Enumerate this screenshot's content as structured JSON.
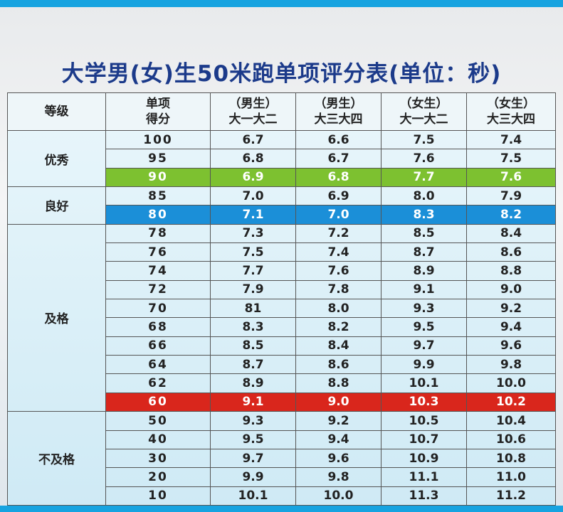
{
  "title": "大学男(女)生50米跑单项评分表(单位：秒)",
  "header": [
    [
      "等级"
    ],
    [
      "单项",
      "得分"
    ],
    [
      "（男生）",
      "大一大二"
    ],
    [
      "（男生）",
      "大三大四"
    ],
    [
      "（女生）",
      "大一大二"
    ],
    [
      "（女生）",
      "大三大四"
    ]
  ],
  "groups": [
    {
      "grade": "优秀",
      "rows": [
        {
          "cells": [
            "100",
            "6.7",
            "6.6",
            "7.5",
            "7.4"
          ]
        },
        {
          "cells": [
            "95",
            "6.8",
            "6.7",
            "7.6",
            "7.5"
          ]
        },
        {
          "cells": [
            "90",
            "6.9",
            "6.8",
            "7.7",
            "7.6"
          ],
          "highlight": "#7dc130"
        }
      ]
    },
    {
      "grade": "良好",
      "rows": [
        {
          "cells": [
            "85",
            "7.0",
            "6.9",
            "8.0",
            "7.9"
          ]
        },
        {
          "cells": [
            "80",
            "7.1",
            "7.0",
            "8.3",
            "8.2"
          ],
          "highlight": "#1b8fd8"
        }
      ]
    },
    {
      "grade": "及格",
      "rows": [
        {
          "cells": [
            "78",
            "7.3",
            "7.2",
            "8.5",
            "8.4"
          ]
        },
        {
          "cells": [
            "76",
            "7.5",
            "7.4",
            "8.7",
            "8.6"
          ]
        },
        {
          "cells": [
            "74",
            "7.7",
            "7.6",
            "8.9",
            "8.8"
          ]
        },
        {
          "cells": [
            "72",
            "7.9",
            "7.8",
            "9.1",
            "9.0"
          ]
        },
        {
          "cells": [
            "70",
            "81",
            "8.0",
            "9.3",
            "9.2"
          ]
        },
        {
          "cells": [
            "68",
            "8.3",
            "8.2",
            "9.5",
            "9.4"
          ]
        },
        {
          "cells": [
            "66",
            "8.5",
            "8.4",
            "9.7",
            "9.6"
          ]
        },
        {
          "cells": [
            "64",
            "8.7",
            "8.6",
            "9.9",
            "9.8"
          ]
        },
        {
          "cells": [
            "62",
            "8.9",
            "8.8",
            "10.1",
            "10.0"
          ]
        },
        {
          "cells": [
            "60",
            "9.1",
            "9.0",
            "10.3",
            "10.2"
          ],
          "highlight": "#d9261c"
        }
      ]
    },
    {
      "grade": "不及格",
      "rows": [
        {
          "cells": [
            "50",
            "9.3",
            "9.2",
            "10.5",
            "10.4"
          ]
        },
        {
          "cells": [
            "40",
            "9.5",
            "9.4",
            "10.7",
            "10.6"
          ]
        },
        {
          "cells": [
            "30",
            "9.7",
            "9.6",
            "10.9",
            "10.8"
          ]
        },
        {
          "cells": [
            "20",
            "9.9",
            "9.8",
            "11.1",
            "11.0"
          ]
        },
        {
          "cells": [
            "10",
            "10.1",
            "10.0",
            "11.3",
            "11.2"
          ]
        }
      ]
    }
  ]
}
